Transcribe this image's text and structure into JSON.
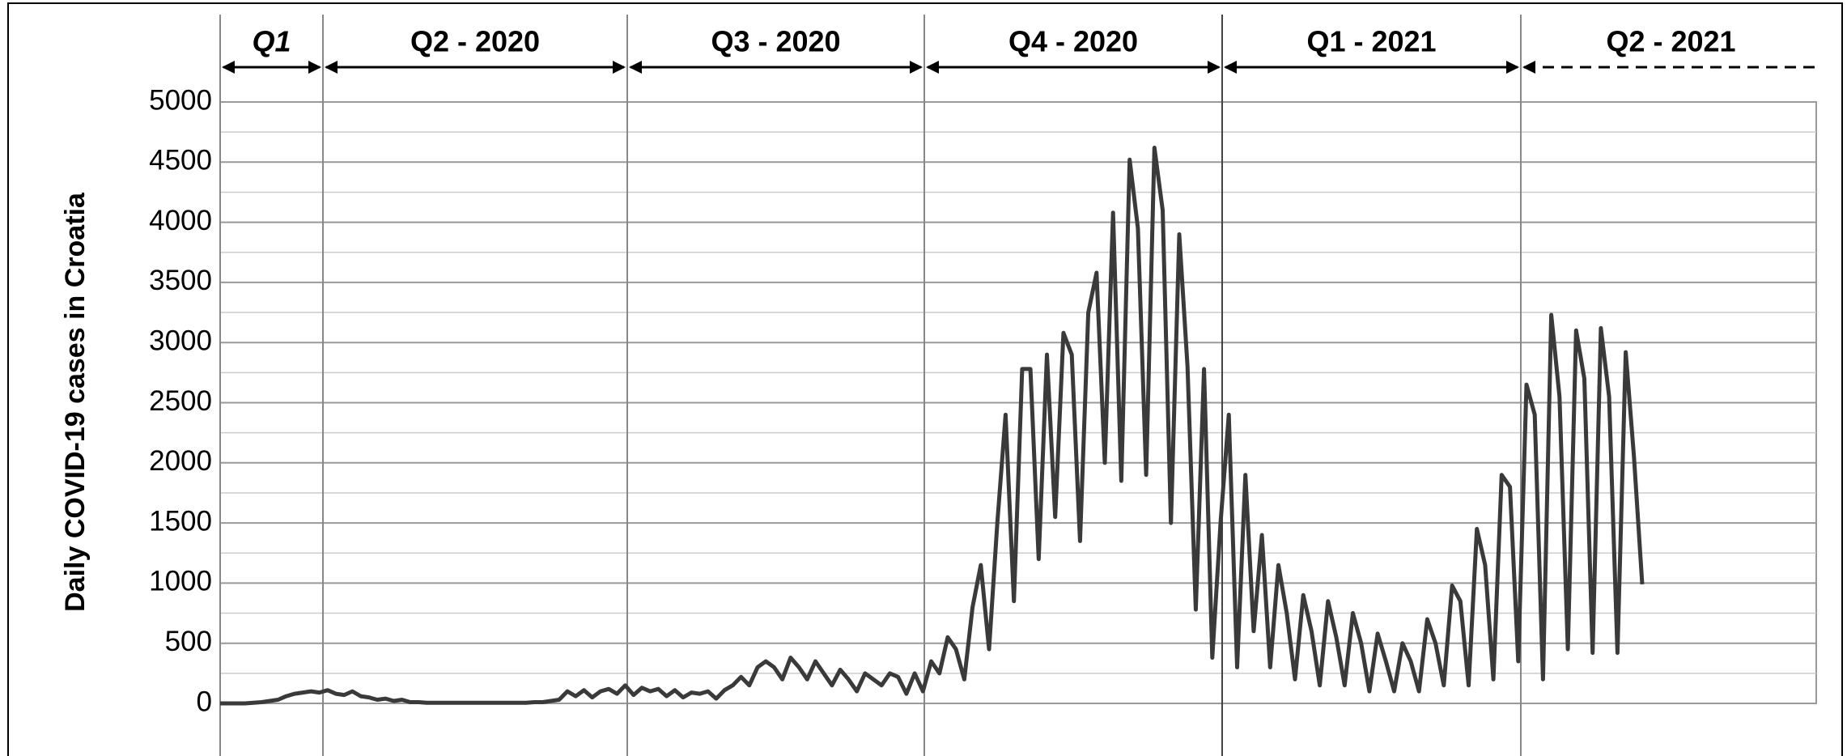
{
  "chart_data": {
    "type": "line",
    "y_label": "Daily COVID-19 cases in Croatia",
    "periods": [
      "Q1",
      "Q2 - 2020",
      "Q3 - 2020",
      "Q4 - 2020",
      "Q1 - 2021",
      "Q2 - 2021"
    ],
    "series": [
      {
        "name": "Daily COVID-19 cases",
        "color": "#3a3a3a",
        "values": [
          0,
          0,
          0,
          0,
          5,
          10,
          20,
          30,
          60,
          80,
          90,
          100,
          90,
          110,
          80,
          70,
          100,
          60,
          50,
          30,
          40,
          20,
          30,
          10,
          10,
          5,
          5,
          5,
          5,
          5,
          5,
          5,
          5,
          5,
          5,
          5,
          5,
          5,
          10,
          10,
          20,
          30,
          100,
          60,
          110,
          50,
          100,
          120,
          80,
          150,
          70,
          130,
          100,
          120,
          60,
          110,
          50,
          90,
          80,
          100,
          40,
          110,
          150,
          220,
          150,
          300,
          350,
          300,
          200,
          380,
          300,
          200,
          350,
          250,
          150,
          280,
          200,
          100,
          250,
          200,
          150,
          250,
          220,
          80,
          250,
          100,
          350,
          250,
          550,
          450,
          200,
          800,
          1150,
          450,
          1500,
          2400,
          850,
          2780,
          2780,
          1200,
          2900,
          1550,
          3080,
          2900,
          1350,
          3250,
          3580,
          2000,
          4080,
          1850,
          4520,
          3950,
          1900,
          4620,
          4100,
          1500,
          3900,
          2800,
          780,
          2780,
          380,
          1500,
          2400,
          300,
          1900,
          600,
          1400,
          300,
          1150,
          750,
          200,
          900,
          600,
          150,
          850,
          550,
          150,
          750,
          500,
          100,
          580,
          350,
          100,
          500,
          350,
          100,
          700,
          500,
          150,
          980,
          850,
          150,
          1450,
          1150,
          200,
          1900,
          1800,
          350,
          2650,
          2400,
          200,
          3230,
          2550,
          450,
          3100,
          2700,
          420,
          3120,
          2550,
          420,
          2920,
          2050,
          990
        ]
      }
    ],
    "ylim": [
      0,
      5000
    ],
    "yticks": [
      0,
      500,
      1000,
      1500,
      2000,
      2500,
      3000,
      3500,
      4000,
      4500,
      5000
    ],
    "grid": true
  }
}
